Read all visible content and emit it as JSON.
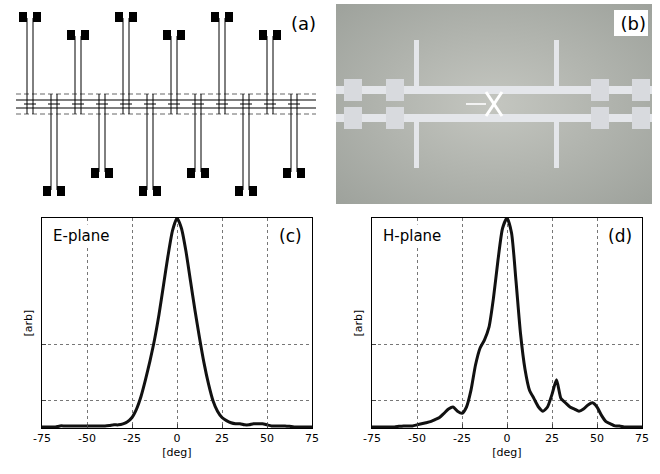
{
  "panels": [
    {
      "label": "(a)"
    },
    {
      "label": "(b)"
    }
  ],
  "chart_data": [
    {
      "type": "line",
      "label": "(c)",
      "annotation": "E-plane",
      "xlabel": "[deg]",
      "ylabel": "[arb]",
      "x": [
        -75,
        -72.5,
        -70,
        -67.5,
        -65,
        -62.5,
        -60,
        -57.5,
        -55,
        -52.5,
        -50,
        -47.5,
        -45,
        -42.5,
        -40,
        -37.5,
        -35,
        -32.5,
        -30,
        -27.5,
        -25,
        -22.5,
        -20,
        -17.5,
        -15,
        -12.5,
        -10,
        -7.5,
        -5,
        -2.5,
        0,
        2.5,
        5,
        7.5,
        10,
        12.5,
        15,
        17.5,
        20,
        22.5,
        25,
        27.5,
        30,
        32.5,
        35,
        37.5,
        40,
        42.5,
        45,
        47.5,
        50,
        52.5,
        55,
        57.5,
        60,
        62.5,
        65,
        67.5,
        70,
        72.5,
        75
      ],
      "values": [
        0.005,
        0.005,
        0.005,
        0.005,
        0.01,
        0.01,
        0.01,
        0.01,
        0.01,
        0.01,
        0.01,
        0.01,
        0.01,
        0.01,
        0.01,
        0.012,
        0.015,
        0.015,
        0.02,
        0.03,
        0.05,
        0.09,
        0.15,
        0.23,
        0.32,
        0.42,
        0.54,
        0.68,
        0.82,
        0.94,
        1.0,
        0.95,
        0.84,
        0.7,
        0.56,
        0.43,
        0.31,
        0.21,
        0.13,
        0.08,
        0.05,
        0.035,
        0.025,
        0.02,
        0.02,
        0.015,
        0.015,
        0.02,
        0.02,
        0.02,
        0.015,
        0.01,
        0.01,
        0.01,
        0.01,
        0.008,
        0.005,
        0.005,
        0.005,
        0.005,
        0.005
      ],
      "color": "#111111",
      "xlim": [
        -75,
        75
      ],
      "xticks": [
        -75,
        -50,
        -25,
        0,
        25,
        50,
        75
      ],
      "ylim": [
        0,
        1
      ],
      "yticks": [
        0.13,
        0.4
      ],
      "grid": true,
      "tick_labels": "x"
    },
    {
      "type": "line",
      "label": "(d)",
      "annotation": "H-plane",
      "xlabel": "[deg]",
      "ylabel": "[arb]",
      "x": [
        -75,
        -72.5,
        -70,
        -67.5,
        -65,
        -62.5,
        -60,
        -57.5,
        -55,
        -52.5,
        -50,
        -47.5,
        -45,
        -42.5,
        -40,
        -37.5,
        -35,
        -32.5,
        -30,
        -27.5,
        -25,
        -22.5,
        -20,
        -17.5,
        -15,
        -12.5,
        -10,
        -7.5,
        -5,
        -2.5,
        0,
        2.5,
        5,
        7.5,
        10,
        12.5,
        15,
        17.5,
        20,
        22.5,
        25,
        27.5,
        30,
        32.5,
        35,
        37.5,
        40,
        42.5,
        45,
        47.5,
        50,
        52.5,
        55,
        57.5,
        60,
        62.5,
        65,
        67.5,
        70,
        72.5,
        75
      ],
      "values": [
        0.005,
        0.005,
        0.005,
        0.005,
        0.005,
        0.005,
        0.008,
        0.01,
        0.01,
        0.01,
        0.015,
        0.02,
        0.025,
        0.03,
        0.04,
        0.05,
        0.07,
        0.09,
        0.1,
        0.08,
        0.07,
        0.1,
        0.18,
        0.3,
        0.38,
        0.42,
        0.48,
        0.62,
        0.8,
        0.95,
        1.0,
        0.93,
        0.7,
        0.45,
        0.28,
        0.18,
        0.14,
        0.1,
        0.08,
        0.1,
        0.16,
        0.23,
        0.14,
        0.12,
        0.1,
        0.09,
        0.08,
        0.09,
        0.11,
        0.12,
        0.1,
        0.06,
        0.03,
        0.02,
        0.01,
        0.01,
        0.005,
        0.005,
        0.005,
        0.005,
        0.005
      ],
      "color": "#111111",
      "xlim": [
        -75,
        75
      ],
      "xticks": [
        -75,
        -50,
        -25,
        0,
        25,
        50,
        75
      ],
      "ylim": [
        0,
        1
      ],
      "yticks": [
        0.13,
        0.4
      ],
      "grid": true,
      "tick_labels": "x"
    }
  ]
}
